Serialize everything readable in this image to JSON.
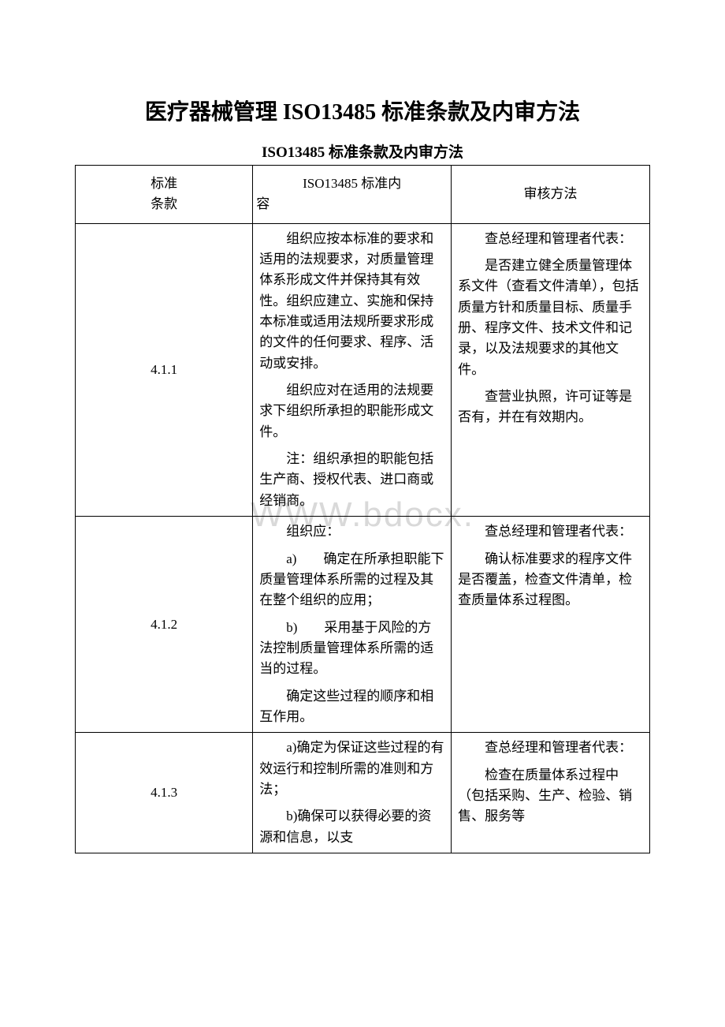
{
  "title": {
    "main": "医疗器械管理 ISO13485 标准条款及内审方法",
    "sub": "ISO13485 标准条款及内审方法"
  },
  "watermark": "WWW.bdocx.",
  "table": {
    "header": {
      "col1_line1": "标准",
      "col1_line2": "条款",
      "col2_line1": "ISO13485 标准内",
      "col2_line2": "容",
      "col3": "审核方法"
    },
    "rows": [
      {
        "clause": "4.1.1",
        "content": [
          "组织应按本标准的要求和适用的法规要求，对质量管理体系形成文件并保持其有效性。组织应建立、实施和保持本标准或适用法规所要求形成的文件的任何要求、程序、活动或安排。",
          "组织应对在适用的法规要求下组织所承担的职能形成文件。",
          "注：组织承担的职能包括生产商、授权代表、进口商或经销商。"
        ],
        "audit": [
          "查总经理和管理者代表：",
          "是否建立健全质量管理体系文件（查看文件清单），包括质量方针和质量目标、质量手册、程序文件、技术文件和记录，以及法规要求的其他文件。",
          "查营业执照，许可证等是否有，并在有效期内。"
        ]
      },
      {
        "clause": "4.1.2",
        "content": [
          "组织应：",
          "a)　　确定在所承担职能下质量管理体系所需的过程及其在整个组织的应用；",
          "b)　　采用基于风险的方法控制质量管理体系所需的适当的过程。",
          "确定这些过程的顺序和相互作用。"
        ],
        "audit": [
          "查总经理和管理者代表：",
          "确认标准要求的程序文件是否覆盖，检查文件清单，检查质量体系过程图。"
        ]
      },
      {
        "clause": "4.1.3",
        "content": [
          "a)确定为保证这些过程的有效运行和控制所需的准则和方法；",
          "b)确保可以获得必要的资源和信息，以支"
        ],
        "audit": [
          "查总经理和管理者代表：",
          "检查在质量体系过程中（包括采购、生产、检验、销售、服务等"
        ]
      }
    ]
  }
}
